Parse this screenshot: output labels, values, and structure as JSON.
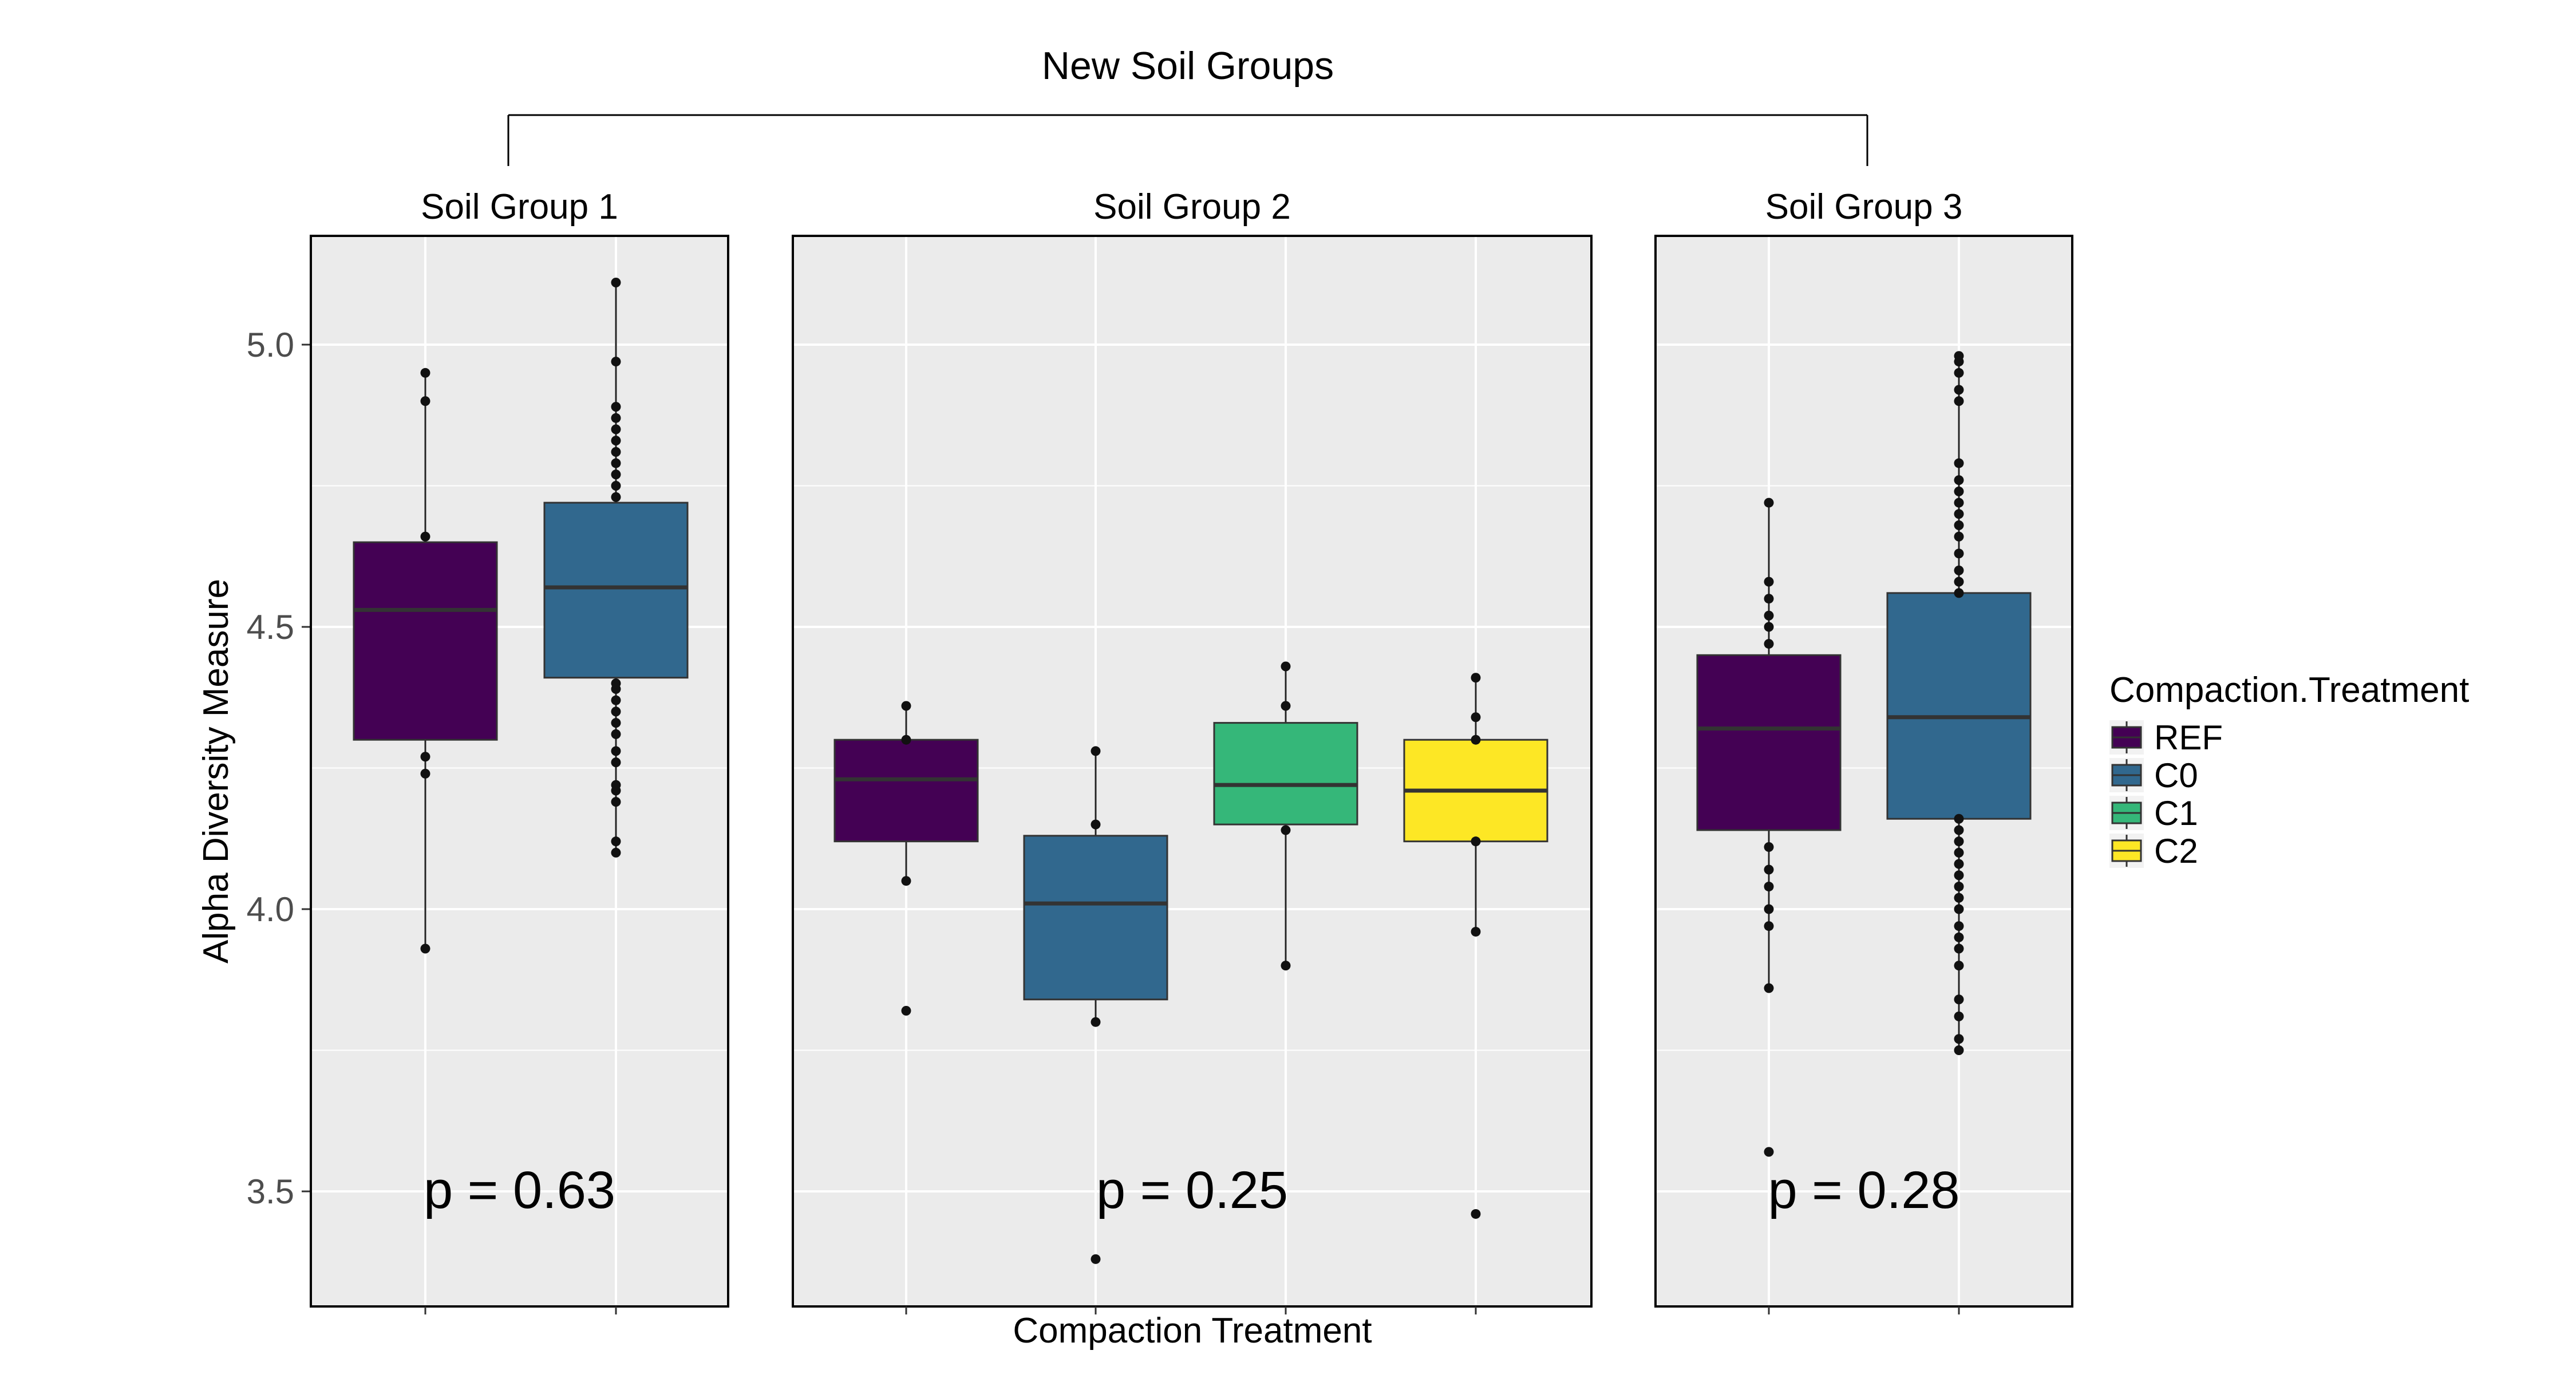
{
  "chart_data": {
    "type": "box",
    "super_title": "New Soil Groups",
    "xlabel": "Compaction Treatment",
    "ylabel": "Alpha Diversity Measure",
    "ylim": [
      3.3,
      5.2
    ],
    "y_ticks": [
      3.5,
      4.0,
      4.5,
      5.0
    ],
    "y_tick_labels": [
      "3.5",
      "4.0",
      "4.5",
      "5.0"
    ],
    "grid": true,
    "legend": {
      "title": "Compaction.Treatment",
      "position": "right",
      "entries": [
        "REF",
        "C0",
        "C1",
        "C2"
      ]
    },
    "colors": {
      "REF": "#440154",
      "C0": "#31688e",
      "C1": "#35b779",
      "C2": "#fde725"
    },
    "panels": [
      {
        "title": "Soil Group 1",
        "p_label": "p = 0.63",
        "boxes": [
          {
            "group": "REF",
            "q1": 4.3,
            "median": 4.53,
            "q3": 4.65,
            "whisker_low": 3.93,
            "whisker_high": 4.95,
            "points": [
              3.93,
              4.24,
              4.27,
              4.66,
              4.9,
              4.95
            ]
          },
          {
            "group": "C0",
            "q1": 4.41,
            "median": 4.57,
            "q3": 4.72,
            "whisker_low": 4.1,
            "whisker_high": 5.11,
            "points": [
              4.1,
              4.12,
              4.19,
              4.21,
              4.22,
              4.26,
              4.28,
              4.31,
              4.33,
              4.35,
              4.37,
              4.39,
              4.4,
              4.73,
              4.75,
              4.77,
              4.79,
              4.81,
              4.83,
              4.85,
              4.87,
              4.89,
              4.97,
              5.11
            ]
          }
        ]
      },
      {
        "title": "Soil Group 2",
        "p_label": "p = 0.25",
        "boxes": [
          {
            "group": "REF",
            "q1": 4.12,
            "median": 4.23,
            "q3": 4.3,
            "whisker_low": 4.05,
            "whisker_high": 4.36,
            "points": [
              3.82,
              4.05,
              4.3,
              4.36
            ]
          },
          {
            "group": "C0",
            "q1": 3.84,
            "median": 4.01,
            "q3": 4.13,
            "whisker_low": 3.8,
            "whisker_high": 4.28,
            "points": [
              3.38,
              3.8,
              4.15,
              4.28
            ]
          },
          {
            "group": "C1",
            "q1": 4.15,
            "median": 4.22,
            "q3": 4.33,
            "whisker_low": 3.9,
            "whisker_high": 4.43,
            "points": [
              3.9,
              4.14,
              4.36,
              4.43
            ]
          },
          {
            "group": "C2",
            "q1": 4.12,
            "median": 4.21,
            "q3": 4.3,
            "whisker_low": 3.96,
            "whisker_high": 4.41,
            "points": [
              3.46,
              3.96,
              4.12,
              4.3,
              4.34,
              4.41
            ]
          }
        ]
      },
      {
        "title": "Soil Group 3",
        "p_label": "p = 0.28",
        "boxes": [
          {
            "group": "REF",
            "q1": 4.14,
            "median": 4.32,
            "q3": 4.45,
            "whisker_low": 3.86,
            "whisker_high": 4.72,
            "points": [
              3.57,
              3.86,
              3.97,
              4.0,
              4.04,
              4.07,
              4.11,
              4.47,
              4.5,
              4.52,
              4.55,
              4.58,
              4.72
            ]
          },
          {
            "group": "C0",
            "q1": 4.16,
            "median": 4.34,
            "q3": 4.56,
            "whisker_low": 3.75,
            "whisker_high": 4.98,
            "points": [
              3.75,
              3.77,
              3.81,
              3.84,
              3.9,
              3.93,
              3.95,
              3.97,
              4.0,
              4.02,
              4.04,
              4.06,
              4.08,
              4.1,
              4.12,
              4.14,
              4.16,
              4.56,
              4.58,
              4.6,
              4.63,
              4.66,
              4.68,
              4.7,
              4.72,
              4.74,
              4.76,
              4.79,
              4.9,
              4.92,
              4.95,
              4.97,
              4.98
            ]
          }
        ]
      }
    ]
  }
}
